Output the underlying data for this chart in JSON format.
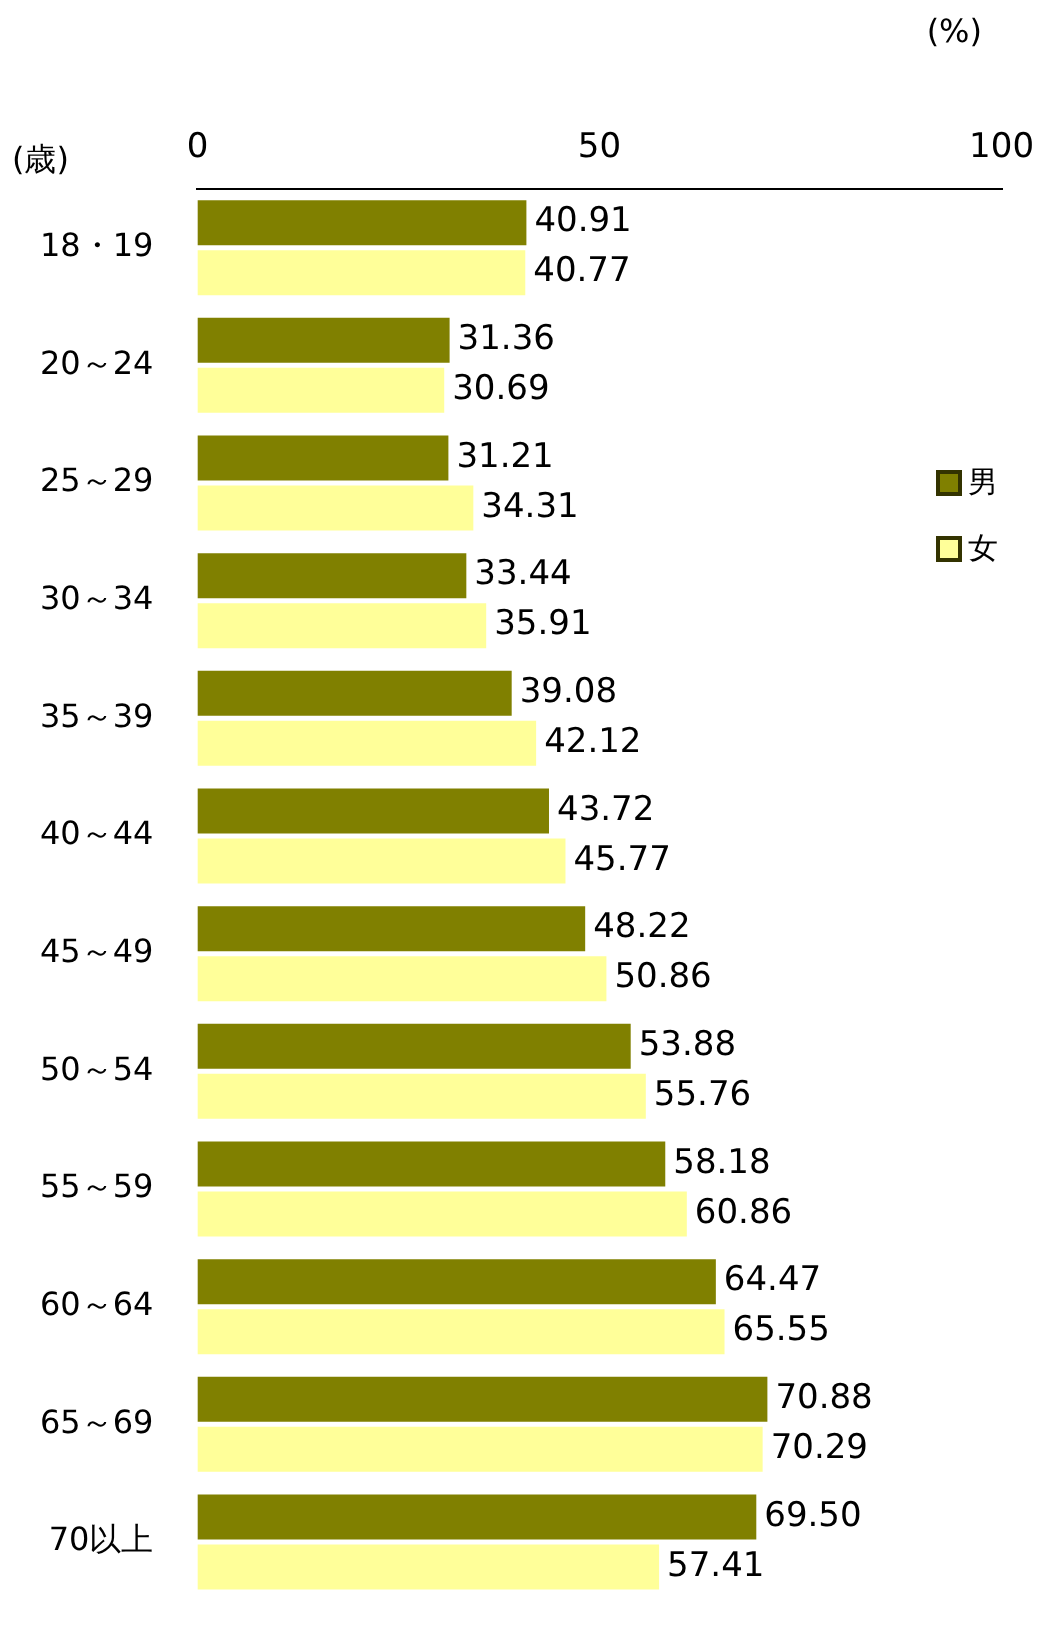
{
  "chart_data": {
    "type": "bar",
    "orientation": "horizontal",
    "xlabel": "(%)",
    "ylabel": "(歳)",
    "categories": [
      "18・19",
      "20～24",
      "25～29",
      "30～34",
      "35～39",
      "40～44",
      "45～49",
      "50～54",
      "55～59",
      "60～64",
      "65～69",
      "70以上"
    ],
    "series": [
      {
        "name": "男",
        "color": "#808000",
        "values": [
          40.91,
          31.36,
          31.21,
          33.44,
          39.08,
          43.72,
          48.22,
          53.88,
          58.18,
          64.47,
          70.88,
          69.5
        ],
        "value_labels": [
          "40.91",
          "31.36",
          "31.21",
          "33.44",
          "39.08",
          "43.72",
          "48.22",
          "53.88",
          "58.18",
          "64.47",
          "70.88",
          "69.50"
        ]
      },
      {
        "name": "女",
        "color": "#ffff99",
        "values": [
          40.77,
          30.69,
          34.31,
          35.91,
          42.12,
          45.77,
          50.86,
          55.76,
          60.86,
          65.55,
          70.29,
          57.41
        ],
        "value_labels": [
          "40.77",
          "30.69",
          "34.31",
          "35.91",
          "42.12",
          "45.77",
          "50.86",
          "55.76",
          "60.86",
          "65.55",
          "70.29",
          "57.41"
        ]
      }
    ],
    "xlim": [
      0,
      100
    ],
    "xticks": [
      0,
      50,
      100
    ],
    "grid": false,
    "legend": "right"
  }
}
